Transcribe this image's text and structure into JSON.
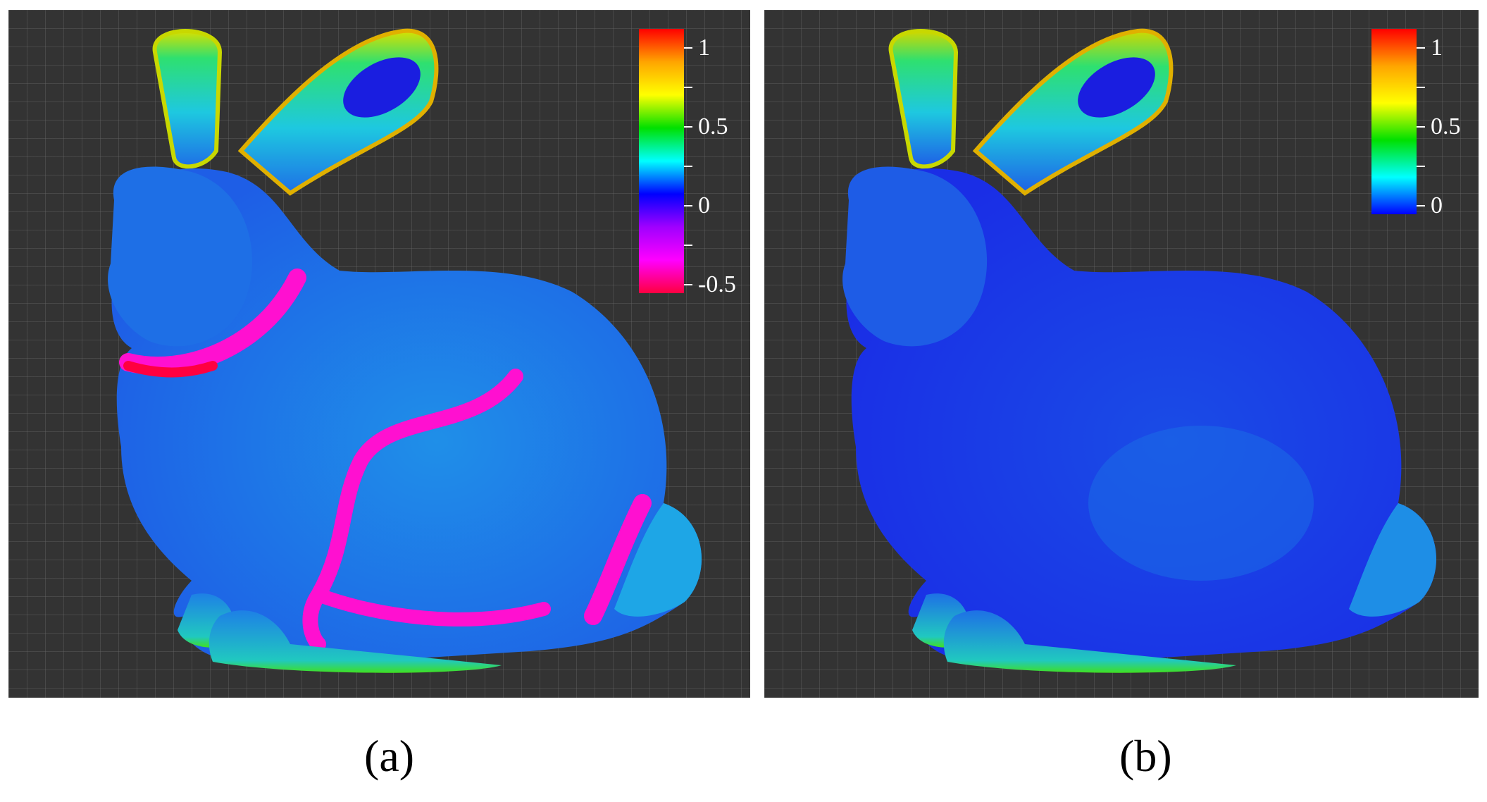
{
  "panels": [
    {
      "caption": "(a)",
      "colorbar": {
        "tick_labels": [
          "1",
          "0.5",
          "0",
          "-0.5"
        ],
        "colors": [
          "#ff0000",
          "#ffa500",
          "#ffff00",
          "#00e000",
          "#00ffff",
          "#0000ff",
          "#a000ff",
          "#ff00ff",
          "#ff0040"
        ]
      }
    },
    {
      "caption": "(b)",
      "colorbar": {
        "tick_labels": [
          "1",
          "0.5",
          "0"
        ],
        "colors": [
          "#ff0000",
          "#ffa500",
          "#ffff00",
          "#00e000",
          "#00ffff",
          "#0000ff"
        ]
      }
    }
  ],
  "background_color": "#333333"
}
